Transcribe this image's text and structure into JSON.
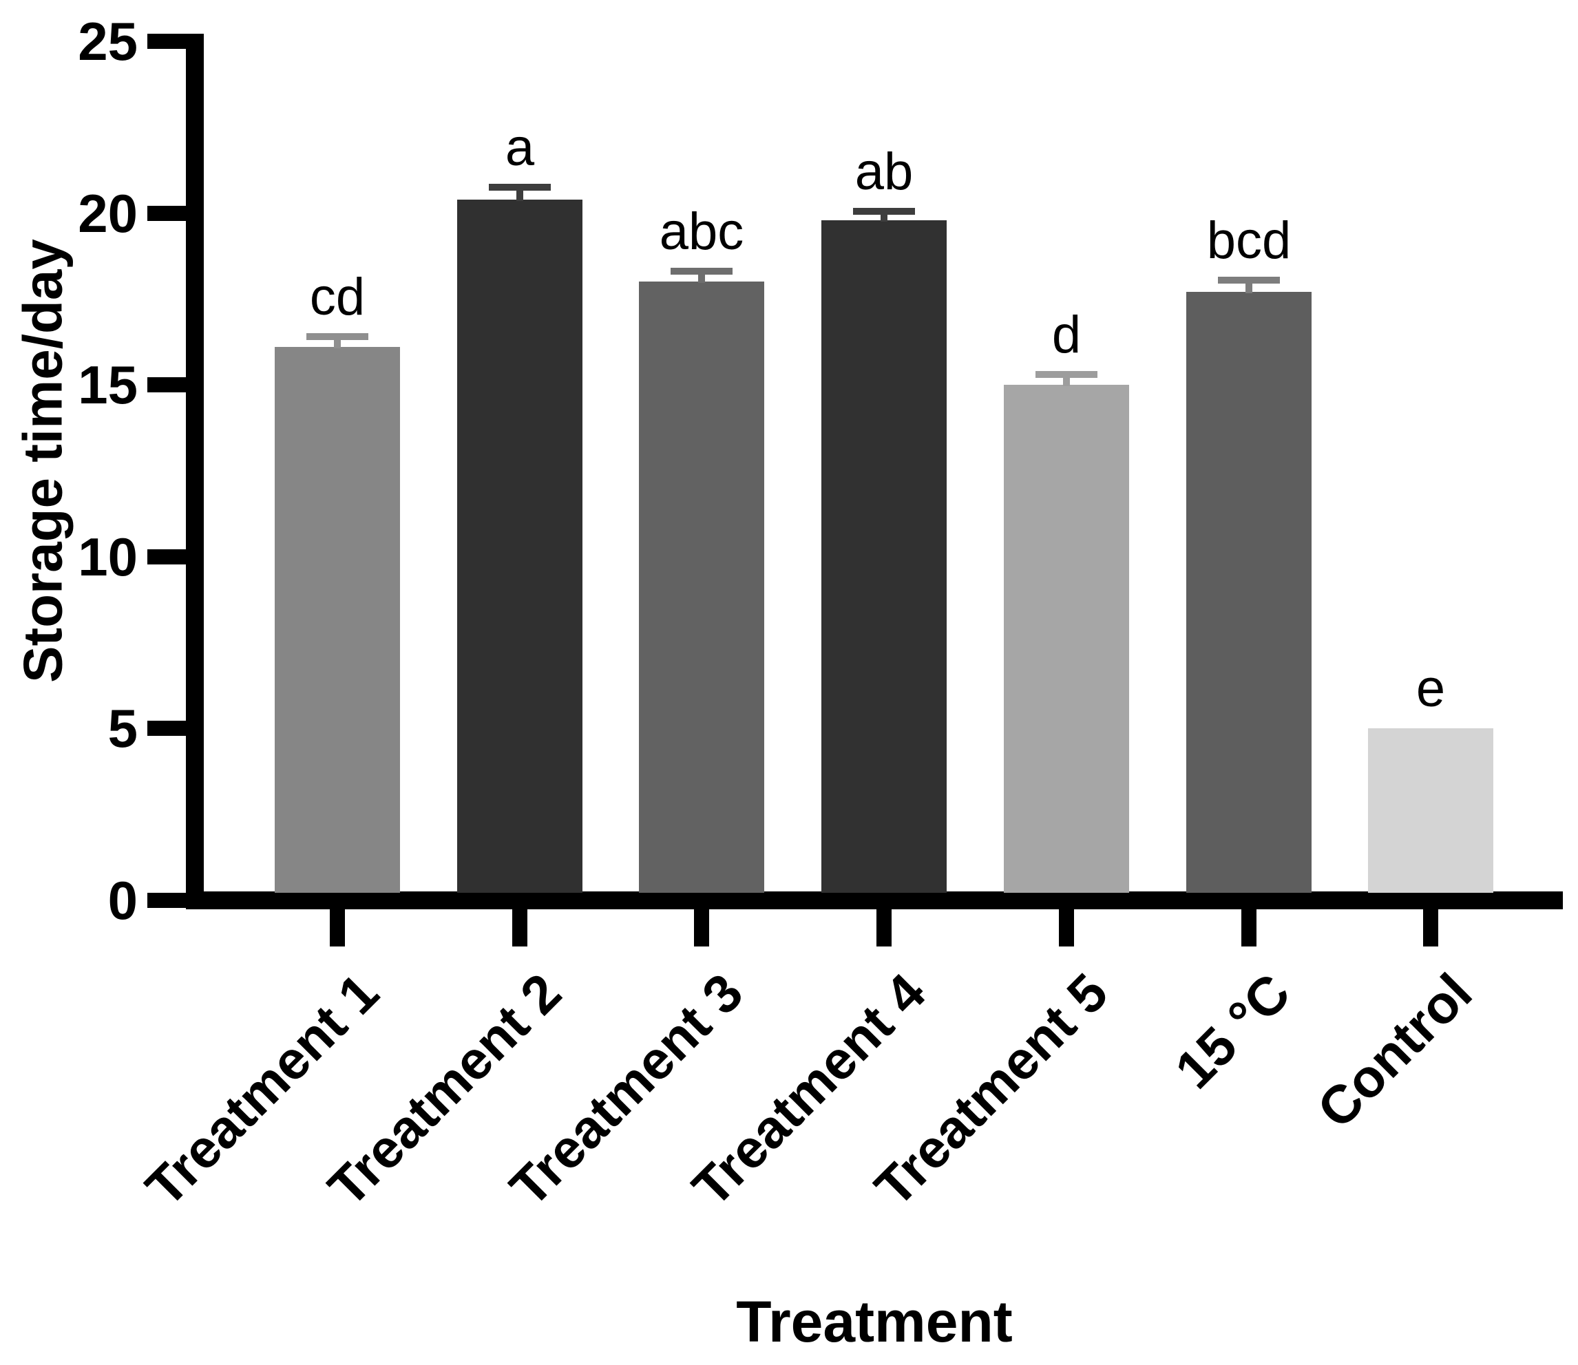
{
  "chart_data": {
    "type": "bar",
    "title": "",
    "xlabel": "Treatment",
    "ylabel": "Storage time/day",
    "categories": [
      "Treatment 1",
      "Treatment 2",
      "Treatment 3",
      "Treatment 4",
      "Treatment 5",
      "15 °C",
      "Control"
    ],
    "values": [
      16.1,
      20.4,
      18.0,
      19.8,
      15.0,
      17.7,
      5.0
    ],
    "errors_upper": [
      0.3,
      0.35,
      0.3,
      0.25,
      0.3,
      0.35,
      null
    ],
    "sig_letters": [
      "cd",
      "a",
      "abc",
      "ab",
      "d",
      "bcd",
      "e"
    ],
    "bar_colors": [
      "#868686",
      "#303030",
      "#626262",
      "#313131",
      "#a6a6a6",
      "#5e5e5e",
      "#d4d4d4"
    ],
    "error_bar_colors": [
      "#8f8f8f",
      "#3d3d3d",
      "#6e6e6e",
      "#3d3d3d",
      "#9d9d9d",
      "#7d7d7d",
      null
    ],
    "yticks": [
      0,
      5,
      10,
      15,
      20,
      25
    ],
    "ylim": [
      0,
      25
    ],
    "grid": "off",
    "legend": "none",
    "axis_color": "#000000",
    "background_color": "#ffffff"
  }
}
